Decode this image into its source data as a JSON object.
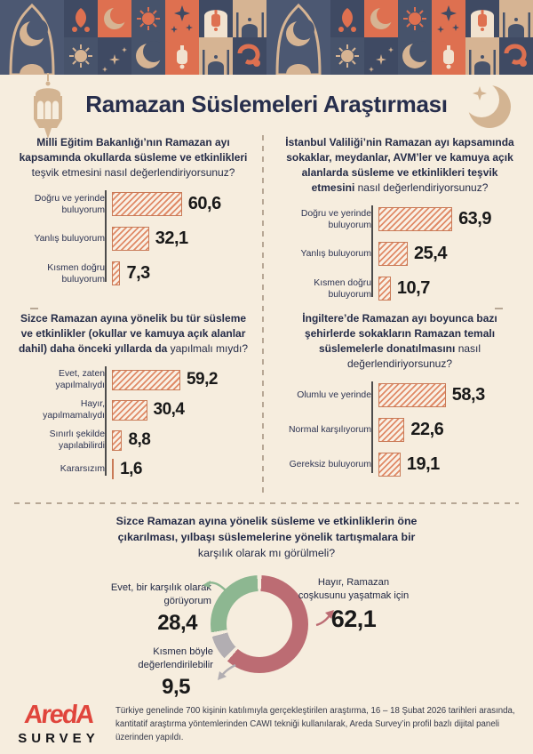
{
  "header": {
    "title": "Ramazan Süslemeleri Araştırması"
  },
  "panels": [
    {
      "question_bold": "Milli Eğitim Bakanlığı’nın Ramazan ayı kapsamında okullarda süsleme ve etkinlikleri",
      "question_rest": "teşvik etmesini nasıl değerlendiriyorsunuz?",
      "bars": [
        {
          "label": "Doğru ve yerinde buluyorum",
          "display": "60,6",
          "value": 60.6
        },
        {
          "label": "Yanlış buluyorum",
          "display": "32,1",
          "value": 32.1
        },
        {
          "label": "Kısmen doğru buluyorum",
          "display": "7,3",
          "value": 7.3
        }
      ]
    },
    {
      "question_bold": "İstanbul Valiliği’nin Ramazan ayı kapsamında sokaklar, meydanlar, AVM’ler ve kamuya açık alanlarda süsleme ve etkinlikleri teşvik etmesini",
      "question_rest": "nasıl değerlendiriyorsunuz?",
      "bars": [
        {
          "label": "Doğru ve yerinde buluyorum",
          "display": "63,9",
          "value": 63.9
        },
        {
          "label": "Yanlış buluyorum",
          "display": "25,4",
          "value": 25.4
        },
        {
          "label": "Kısmen doğru buluyorum",
          "display": "10,7",
          "value": 10.7
        }
      ]
    },
    {
      "question_bold": "Sizce Ramazan ayına yönelik bu tür süsleme ve etkinlikler (okullar ve kamuya açık alanlar dahil) daha önceki yıllarda da",
      "question_rest": "yapılmalı mıydı?",
      "bars": [
        {
          "label": "Evet, zaten yapılmalıydı",
          "display": "59,2",
          "value": 59.2
        },
        {
          "label": "Hayır, yapılmamalıydı",
          "display": "30,4",
          "value": 30.4
        },
        {
          "label": "Sınırlı şekilde yapılabilirdi",
          "display": "8,8",
          "value": 8.8
        },
        {
          "label": "Kararsızım",
          "display": "1,6",
          "value": 1.6
        }
      ]
    },
    {
      "question_bold": "İngiltere’de Ramazan ayı boyunca bazı şehirlerde sokakların Ramazan temalı süslemelerle donatılmasını",
      "question_rest": "nasıl değerlendiriyorsunuz?",
      "bars": [
        {
          "label": "Olumlu ve yerinde",
          "display": "58,3",
          "value": 58.3
        },
        {
          "label": "Normal karşılıyorum",
          "display": "22,6",
          "value": 22.6
        },
        {
          "label": "Gereksiz buluyorum",
          "display": "19,1",
          "value": 19.1
        }
      ]
    }
  ],
  "donut": {
    "question_bold": "Sizce Ramazan ayına yönelik süsleme ve etkinliklerin öne çıkarılması, yılbaşı süslemelerine yönelik tartışmalara bir",
    "question_rest": "karşılık olarak mı görülmeli?",
    "segments": [
      {
        "label": "Hayır, Ramazan coşkusunu yaşatmak için",
        "display": "62,1",
        "value": 62.1,
        "color": "#bc6c73"
      },
      {
        "label": "Kısmen böyle değerlendirilebilir",
        "display": "9,5",
        "value": 9.5,
        "color": "#b2aeb2"
      },
      {
        "label": "Evet, bir karşılık olarak görüyorum",
        "display": "28,4",
        "value": 28.4,
        "color": "#8db791"
      }
    ]
  },
  "footer": {
    "logo_line1": "AredA",
    "logo_line2": "SURVEY",
    "note": "Türkiye genelinde 700 kişinin katılımıyla gerçekleştirilen araştırma, 16 – 18 Şubat 2026 tarihleri arasında, kantitatif araştırma yöntemlerinden CAWI tekniği kullanılarak, Areda Survey’in profil bazlı dijital paneli üzerinden yapıldı."
  },
  "colors": {
    "background": "#f6edde",
    "navy_text": "#242b47",
    "bar_hatch": "#e08a67",
    "bar_border": "#c97a57",
    "axis": "#4c4c4c",
    "divider": "#b7a795",
    "donut_rose": "#bc6c73",
    "donut_gray": "#b2aeb2",
    "donut_green": "#8db791",
    "logo_red": "#e0453c",
    "border_navy": "#47536b",
    "border_navy_dark": "#3f4a63",
    "border_orange": "#de7050",
    "border_tan": "#d6b493"
  },
  "chart_data": [
    {
      "type": "bar",
      "orientation": "horizontal",
      "unit": "percent",
      "title": "Milli Eğitim Bakanlığı’nın Ramazan ayı kapsamında okullarda süsleme ve etkinlikleri teşvik etmesini nasıl değerlendiriyorsunuz?",
      "categories": [
        "Doğru ve yerinde buluyorum",
        "Yanlış buluyorum",
        "Kısmen doğru buluyorum"
      ],
      "values": [
        60.6,
        32.1,
        7.3
      ]
    },
    {
      "type": "bar",
      "orientation": "horizontal",
      "unit": "percent",
      "title": "İstanbul Valiliği’nin Ramazan ayı kapsamında sokaklar, meydanlar, AVM’ler ve kamuya açık alanlarda süsleme ve etkinlikleri teşvik etmesini nasıl değerlendiriyorsunuz?",
      "categories": [
        "Doğru ve yerinde buluyorum",
        "Yanlış buluyorum",
        "Kısmen doğru buluyorum"
      ],
      "values": [
        63.9,
        25.4,
        10.7
      ]
    },
    {
      "type": "bar",
      "orientation": "horizontal",
      "unit": "percent",
      "title": "Sizce Ramazan ayına yönelik bu tür süsleme ve etkinlikler (okullar ve kamuya açık alanlar dahil) daha önceki yıllarda da yapılmalı mıydı?",
      "categories": [
        "Evet, zaten yapılmalıydı",
        "Hayır, yapılmamalıydı",
        "Sınırlı şekilde yapılabilirdi",
        "Kararsızım"
      ],
      "values": [
        59.2,
        30.4,
        8.8,
        1.6
      ]
    },
    {
      "type": "bar",
      "orientation": "horizontal",
      "unit": "percent",
      "title": "İngiltere’de Ramazan ayı boyunca bazı şehirlerde sokakların Ramazan temalı süslemelerle donatılmasını nasıl değerlendiriyorsunuz?",
      "categories": [
        "Olumlu ve yerinde",
        "Normal karşılıyorum",
        "Gereksiz buluyorum"
      ],
      "values": [
        58.3,
        22.6,
        19.1
      ]
    },
    {
      "type": "pie",
      "subtype": "donut",
      "unit": "percent",
      "title": "Sizce Ramazan ayına yönelik süsleme ve etkinliklerin öne çıkarılması, yılbaşı süslemelerine yönelik tartışmalara bir karşılık olarak mı görülmeli?",
      "labels": [
        "Hayır, Ramazan coşkusunu yaşatmak için",
        "Kısmen böyle değerlendirilebilir",
        "Evet, bir karşılık olarak görüyorum"
      ],
      "values": [
        62.1,
        9.5,
        28.4
      ],
      "colors": [
        "#bc6c73",
        "#b2aeb2",
        "#8db791"
      ],
      "start_angle_deg": 0,
      "direction": "clockwise"
    }
  ]
}
